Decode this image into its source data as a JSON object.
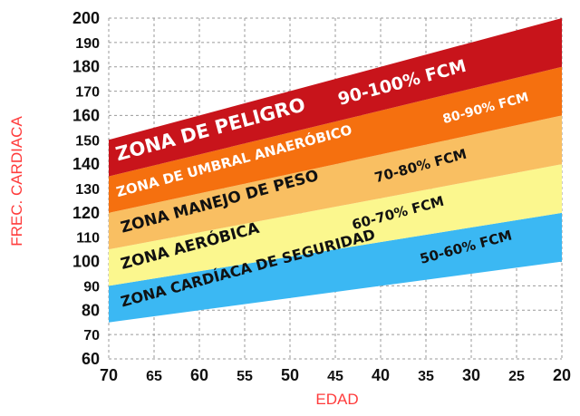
{
  "chart_data": {
    "type": "area",
    "xlabel": "EDAD",
    "ylabel": "FREC. CARDIACA",
    "x_ticks": [
      "70",
      "65",
      "60",
      "55",
      "50",
      "45",
      "40",
      "35",
      "30",
      "25",
      "20"
    ],
    "x_ticks_bold": [
      true,
      false,
      true,
      false,
      true,
      false,
      true,
      false,
      true,
      false,
      true
    ],
    "y_ticks": [
      "60",
      "70",
      "80",
      "90",
      "100",
      "110",
      "120",
      "130",
      "140",
      "150",
      "160",
      "170",
      "180",
      "190",
      "200"
    ],
    "y_ticks_bold": [
      true,
      false,
      true,
      false,
      true,
      false,
      true,
      false,
      true,
      false,
      true,
      false,
      true,
      false,
      true
    ],
    "xlim": [
      70,
      20
    ],
    "ylim": [
      60,
      200
    ],
    "grid": true,
    "max_heart_rate": [
      150,
      155,
      160,
      165,
      170,
      175,
      180,
      185,
      190,
      195,
      200
    ],
    "series": [
      {
        "name": "ZONA CARDÍACA DE SEGURIDAD",
        "percent": "50-60% FCM",
        "range": [
          0.5,
          0.6
        ],
        "color": "#3bb8f3",
        "label_color": "#111111"
      },
      {
        "name": "ZONA AERÓBICA",
        "percent": "60-70% FCM",
        "range": [
          0.6,
          0.7
        ],
        "color": "#fbf78e",
        "label_color": "#111111"
      },
      {
        "name": "ZONA MANEJO DE PESO",
        "percent": "70-80% FCM",
        "range": [
          0.7,
          0.8
        ],
        "color": "#f9bf62",
        "label_color": "#111111"
      },
      {
        "name": "ZONA DE UMBRAL ANAERÓBICO",
        "percent": "80-90% FCM",
        "range": [
          0.8,
          0.9
        ],
        "color": "#f5700f",
        "label_color": "#ffffff"
      },
      {
        "name": "ZONA DE PELIGRO",
        "percent": "90-100% FCM",
        "range": [
          0.9,
          1.0
        ],
        "color": "#c8141b",
        "label_color": "#ffffff"
      }
    ]
  }
}
